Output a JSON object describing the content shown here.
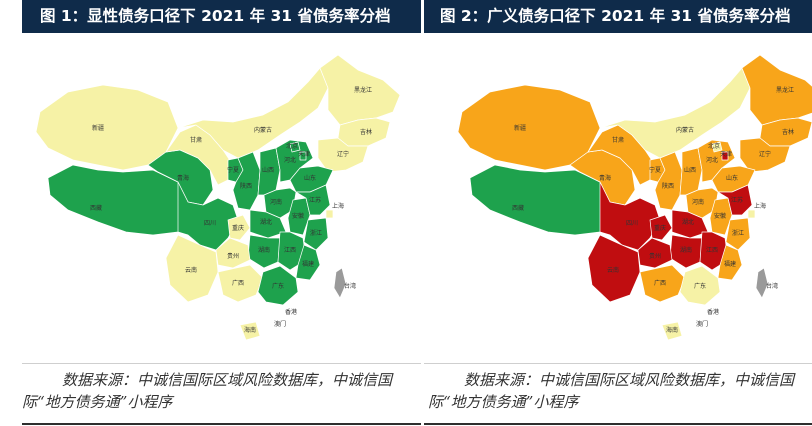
{
  "colors": {
    "title_bg": "#0f2b4a",
    "light_yellow": "#f6f2a6",
    "green": "#1ea24d",
    "orange": "#f8a51a",
    "dark_red": "#c00d10",
    "island_gray": "#9a9a9a"
  },
  "figures": [
    {
      "title": "图 1：显性债务口径下 2021 年 31 省债务率分档",
      "source": "数据来源：中诚信国际区域风险数据库，中诚信国际“地方债务通”小程序",
      "labels": {
        "heilongjiang": "黑龙江",
        "jilin": "吉林",
        "liaoning": "辽宁",
        "neimenggu": "内蒙古",
        "xinjiang": "新疆",
        "xizang": "西藏",
        "qinghai": "青海",
        "gansu": "甘肃",
        "ningxia": "宁夏",
        "shaanxi": "陕西",
        "shanxi": "山西",
        "hebei": "河北",
        "beijing": "北京",
        "tianjin": "天津",
        "shandong": "山东",
        "henan": "河南",
        "sichuan": "四川",
        "chongqing": "重庆",
        "hubei": "湖北",
        "anhui": "安徽",
        "jiangsu": "江苏",
        "shanghai": "上海",
        "zhejiang": "浙江",
        "hunan": "湖南",
        "jiangxi": "江西",
        "fujian": "福建",
        "guizhou": "贵州",
        "yunnan": "云南",
        "guangxi": "广西",
        "guangdong": "广东",
        "hainan": "海南",
        "taiwan": "台湾",
        "hongkong": "香港",
        "macao": "澳门"
      }
    },
    {
      "title": "图 2：广义债务口径下 2021 年 31 省债务率分档",
      "source": "数据来源：中诚信国际区域风险数据库，中诚信国际“地方债务通”小程序",
      "labels": {
        "heilongjiang": "黑龙江",
        "jilin": "吉林",
        "liaoning": "辽宁",
        "neimenggu": "内蒙古",
        "xinjiang": "新疆",
        "xizang": "西藏",
        "qinghai": "青海",
        "gansu": "甘肃",
        "ningxia": "宁夏",
        "shaanxi": "陕西",
        "shanxi": "山西",
        "hebei": "河北",
        "beijing": "北京",
        "tianjin": "天津",
        "shandong": "山东",
        "henan": "河南",
        "sichuan": "四川",
        "chongqing": "重庆",
        "hubei": "湖北",
        "anhui": "安徽",
        "jiangsu": "江苏",
        "shanghai": "上海",
        "zhejiang": "浙江",
        "hunan": "湖南",
        "jiangxi": "江西",
        "fujian": "福建",
        "guizhou": "贵州",
        "yunnan": "云南",
        "guangxi": "广西",
        "guangdong": "广东",
        "hainan": "海南",
        "taiwan": "台湾",
        "hongkong": "香港",
        "macao": "澳门"
      }
    }
  ],
  "province_tiers": {
    "fig1": {
      "heilongjiang": "light_yellow",
      "jilin": "light_yellow",
      "liaoning": "light_yellow",
      "neimenggu": "light_yellow",
      "xinjiang": "light_yellow",
      "xizang": "green",
      "qinghai": "green",
      "gansu": "light_yellow",
      "ningxia": "green",
      "shaanxi": "green",
      "shanxi": "green",
      "hebei": "green",
      "beijing": "green",
      "tianjin": "green",
      "shandong": "green",
      "henan": "green",
      "sichuan": "green",
      "chongqing": "light_yellow",
      "hubei": "green",
      "anhui": "green",
      "jiangsu": "green",
      "shanghai": "light_yellow",
      "zhejiang": "green",
      "hunan": "green",
      "jiangxi": "green",
      "fujian": "green",
      "guizhou": "light_yellow",
      "yunnan": "light_yellow",
      "guangxi": "light_yellow",
      "guangdong": "green",
      "hainan": "light_yellow",
      "taiwan": "island_gray"
    },
    "fig2": {
      "heilongjiang": "orange",
      "jilin": "orange",
      "liaoning": "orange",
      "neimenggu": "light_yellow",
      "xinjiang": "orange",
      "xizang": "green",
      "qinghai": "orange",
      "gansu": "orange",
      "ningxia": "orange",
      "shaanxi": "orange",
      "shanxi": "orange",
      "hebei": "orange",
      "beijing": "light_yellow",
      "tianjin": "dark_red",
      "shandong": "orange",
      "henan": "orange",
      "sichuan": "dark_red",
      "chongqing": "dark_red",
      "hubei": "dark_red",
      "anhui": "orange",
      "jiangsu": "dark_red",
      "shanghai": "light_yellow",
      "zhejiang": "orange",
      "hunan": "dark_red",
      "jiangxi": "dark_red",
      "fujian": "orange",
      "guizhou": "dark_red",
      "yunnan": "dark_red",
      "guangxi": "orange",
      "guangdong": "light_yellow",
      "hainan": "light_yellow",
      "taiwan": "island_gray"
    }
  }
}
